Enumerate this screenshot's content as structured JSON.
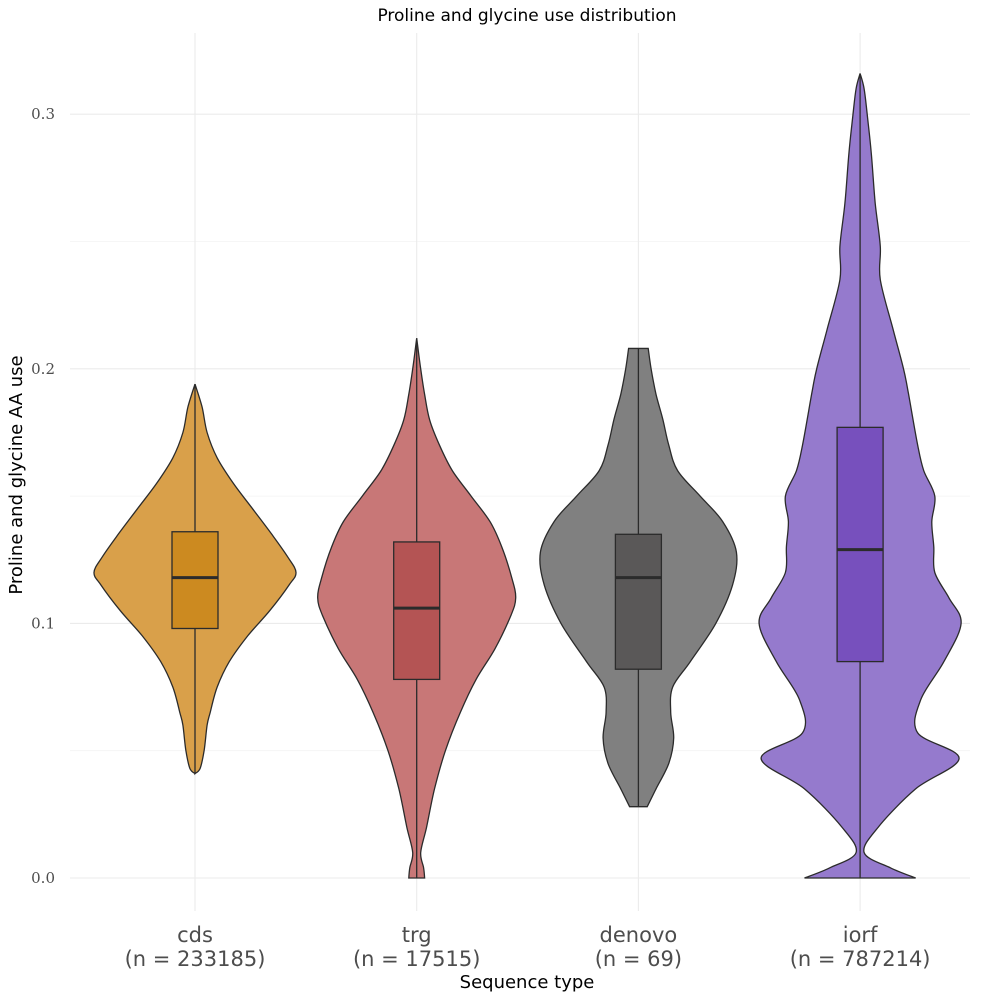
{
  "chart_data": {
    "type": "violin",
    "title": "Proline and glycine use distribution",
    "xlabel": "Sequence type",
    "ylabel": "Proline and glycine AA use",
    "ylim": [
      -0.0135,
      0.3315
    ],
    "y_ticks": [
      0.0,
      0.1,
      0.2,
      0.3
    ],
    "y_tick_labels": [
      "0.0",
      "0.1",
      "0.2",
      "0.3"
    ],
    "grid": true,
    "categories": [
      {
        "name": "cds",
        "n_label": "(n = 233185)",
        "violin_color": "#d9a04a",
        "box_color": "#cc8a20",
        "box": {
          "min": 0.041,
          "q1": 0.098,
          "median": 0.118,
          "q3": 0.136,
          "max": 0.194
        },
        "density": [
          {
            "y": 0.041,
            "w": 0.0
          },
          {
            "y": 0.043,
            "w": 0.05
          },
          {
            "y": 0.05,
            "w": 0.09
          },
          {
            "y": 0.06,
            "w": 0.12
          },
          {
            "y": 0.065,
            "w": 0.15
          },
          {
            "y": 0.075,
            "w": 0.22
          },
          {
            "y": 0.085,
            "w": 0.34
          },
          {
            "y": 0.095,
            "w": 0.52
          },
          {
            "y": 0.105,
            "w": 0.74
          },
          {
            "y": 0.115,
            "w": 0.93
          },
          {
            "y": 0.12,
            "w": 1.0
          },
          {
            "y": 0.126,
            "w": 0.92
          },
          {
            "y": 0.135,
            "w": 0.76
          },
          {
            "y": 0.145,
            "w": 0.57
          },
          {
            "y": 0.155,
            "w": 0.38
          },
          {
            "y": 0.165,
            "w": 0.22
          },
          {
            "y": 0.175,
            "w": 0.12
          },
          {
            "y": 0.185,
            "w": 0.07
          },
          {
            "y": 0.194,
            "w": 0.0
          }
        ]
      },
      {
        "name": "trg",
        "n_label": "(n = 17515)",
        "violin_color": "#c87777",
        "box_color": "#b45454",
        "box": {
          "min": 0.0,
          "q1": 0.078,
          "median": 0.106,
          "q3": 0.132,
          "max": 0.212
        },
        "density": [
          {
            "y": 0.0,
            "w": 0.08
          },
          {
            "y": 0.004,
            "w": 0.07
          },
          {
            "y": 0.01,
            "w": 0.04
          },
          {
            "y": 0.02,
            "w": 0.1
          },
          {
            "y": 0.035,
            "w": 0.18
          },
          {
            "y": 0.05,
            "w": 0.29
          },
          {
            "y": 0.065,
            "w": 0.44
          },
          {
            "y": 0.078,
            "w": 0.6
          },
          {
            "y": 0.09,
            "w": 0.79
          },
          {
            "y": 0.103,
            "w": 0.95
          },
          {
            "y": 0.11,
            "w": 1.0
          },
          {
            "y": 0.118,
            "w": 0.96
          },
          {
            "y": 0.13,
            "w": 0.86
          },
          {
            "y": 0.14,
            "w": 0.74
          },
          {
            "y": 0.15,
            "w": 0.55
          },
          {
            "y": 0.16,
            "w": 0.36
          },
          {
            "y": 0.17,
            "w": 0.23
          },
          {
            "y": 0.18,
            "w": 0.13
          },
          {
            "y": 0.19,
            "w": 0.08
          },
          {
            "y": 0.2,
            "w": 0.04
          },
          {
            "y": 0.212,
            "w": 0.0
          }
        ]
      },
      {
        "name": "denovo",
        "n_label": "(n = 69)",
        "violin_color": "#808080",
        "box_color": "#5a5858",
        "box": {
          "min": 0.028,
          "q1": 0.082,
          "median": 0.118,
          "q3": 0.135,
          "max": 0.208
        },
        "density": [
          {
            "y": 0.028,
            "w": 0.09
          },
          {
            "y": 0.035,
            "w": 0.18
          },
          {
            "y": 0.045,
            "w": 0.31
          },
          {
            "y": 0.055,
            "w": 0.36
          },
          {
            "y": 0.065,
            "w": 0.33
          },
          {
            "y": 0.075,
            "w": 0.35
          },
          {
            "y": 0.085,
            "w": 0.53
          },
          {
            "y": 0.1,
            "w": 0.79
          },
          {
            "y": 0.115,
            "w": 0.96
          },
          {
            "y": 0.128,
            "w": 1.0
          },
          {
            "y": 0.14,
            "w": 0.86
          },
          {
            "y": 0.15,
            "w": 0.63
          },
          {
            "y": 0.16,
            "w": 0.4
          },
          {
            "y": 0.17,
            "w": 0.31
          },
          {
            "y": 0.18,
            "w": 0.25
          },
          {
            "y": 0.19,
            "w": 0.18
          },
          {
            "y": 0.2,
            "w": 0.13
          },
          {
            "y": 0.208,
            "w": 0.1
          }
        ]
      },
      {
        "name": "iorf",
        "n_label": "(n = 787214)",
        "violin_color": "#957acd",
        "box_color": "#7750bd",
        "box": {
          "min": 0.0,
          "q1": 0.085,
          "median": 0.129,
          "q3": 0.177,
          "max": 0.316
        },
        "density": [
          {
            "y": 0.0,
            "w": 0.55
          },
          {
            "y": 0.004,
            "w": 0.3
          },
          {
            "y": 0.01,
            "w": 0.04
          },
          {
            "y": 0.02,
            "w": 0.18
          },
          {
            "y": 0.035,
            "w": 0.55
          },
          {
            "y": 0.047,
            "w": 0.98
          },
          {
            "y": 0.057,
            "w": 0.57
          },
          {
            "y": 0.07,
            "w": 0.6
          },
          {
            "y": 0.085,
            "w": 0.83
          },
          {
            "y": 0.1,
            "w": 1.0
          },
          {
            "y": 0.11,
            "w": 0.88
          },
          {
            "y": 0.12,
            "w": 0.74
          },
          {
            "y": 0.13,
            "w": 0.73
          },
          {
            "y": 0.14,
            "w": 0.71
          },
          {
            "y": 0.15,
            "w": 0.74
          },
          {
            "y": 0.16,
            "w": 0.63
          },
          {
            "y": 0.17,
            "w": 0.57
          },
          {
            "y": 0.19,
            "w": 0.48
          },
          {
            "y": 0.2,
            "w": 0.43
          },
          {
            "y": 0.215,
            "w": 0.33
          },
          {
            "y": 0.235,
            "w": 0.2
          },
          {
            "y": 0.248,
            "w": 0.2
          },
          {
            "y": 0.265,
            "w": 0.15
          },
          {
            "y": 0.285,
            "w": 0.11
          },
          {
            "y": 0.3,
            "w": 0.07
          },
          {
            "y": 0.31,
            "w": 0.04
          },
          {
            "y": 0.316,
            "w": 0.0
          }
        ]
      }
    ]
  }
}
